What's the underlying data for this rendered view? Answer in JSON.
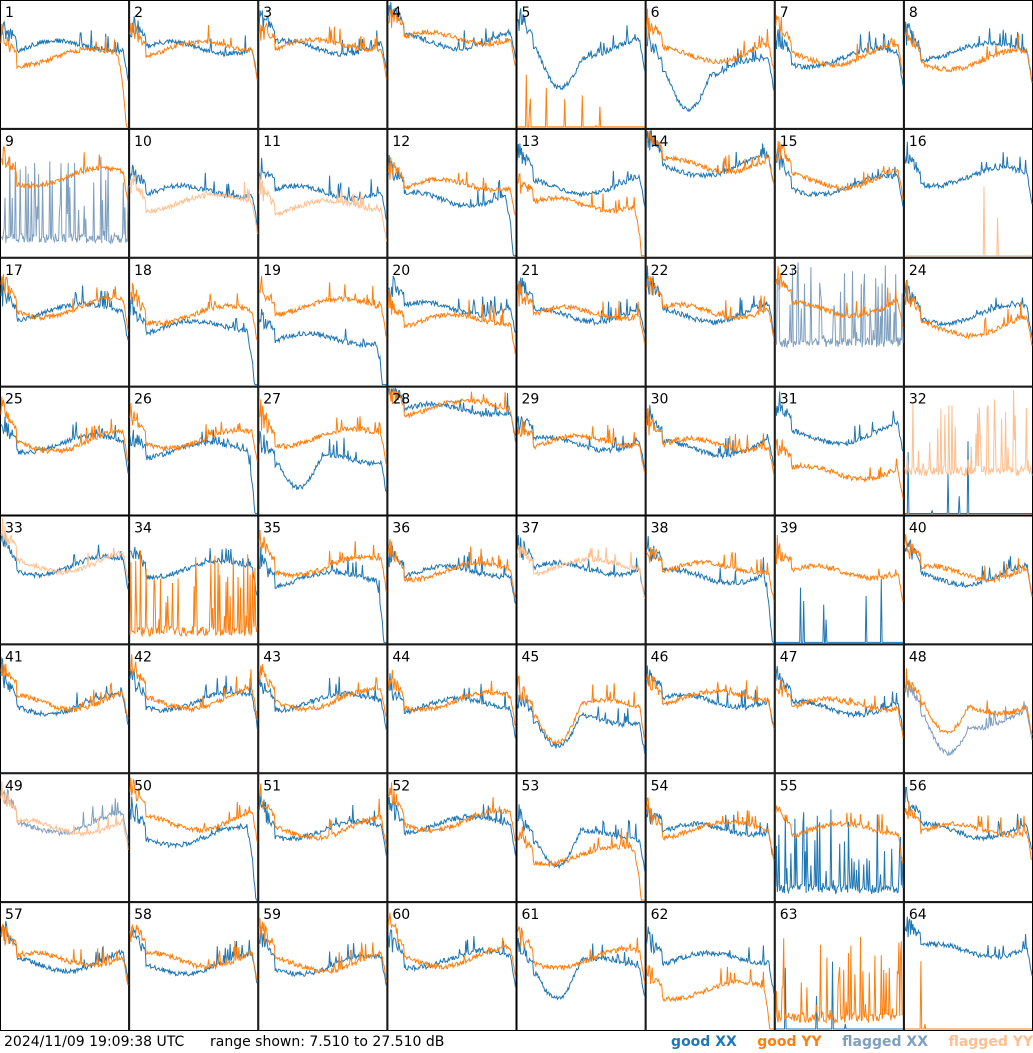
{
  "colors": {
    "good_xx": "#1f77b4",
    "good_yy": "#ff7f0e",
    "flagged_xx": "#7f9fbf",
    "flagged_yy": "#ffbf8f"
  },
  "footer": {
    "timestamp": "2024/11/09 19:09:38 UTC",
    "range_text": "range shown: 7.510 to 27.510 dB"
  },
  "legend": {
    "good_xx": "good XX",
    "good_yy": "good YY",
    "flagged_xx": "flagged XX",
    "flagged_yy": "flagged YY"
  },
  "chart_data": {
    "type": "line",
    "grid": {
      "rows": 8,
      "cols": 8
    },
    "y_range_db": [
      7.51,
      27.51
    ],
    "series_names": [
      "good XX",
      "good YY",
      "flagged XX",
      "flagged YY"
    ],
    "panel_labels": [
      "1",
      "2",
      "3",
      "4",
      "5",
      "6",
      "7",
      "8",
      "9",
      "10",
      "11",
      "12",
      "13",
      "14",
      "15",
      "16",
      "17",
      "18",
      "19",
      "20",
      "21",
      "22",
      "23",
      "24",
      "25",
      "26",
      "27",
      "28",
      "29",
      "30",
      "31",
      "32",
      "33",
      "34",
      "35",
      "36",
      "37",
      "38",
      "39",
      "40",
      "41",
      "42",
      "43",
      "44",
      "45",
      "46",
      "47",
      "48",
      "49",
      "50",
      "51",
      "52",
      "53",
      "54",
      "55",
      "56",
      "57",
      "58",
      "59",
      "60",
      "61",
      "62",
      "63",
      "64"
    ],
    "panels": [
      {
        "id": 1,
        "xx": {
          "flag": false,
          "type": "norm",
          "level": 0.63
        },
        "yy": {
          "flag": false,
          "type": "edge",
          "level": 0.55
        }
      },
      {
        "id": 2,
        "xx": {
          "flag": false,
          "type": "norm",
          "level": 0.62
        },
        "yy": {
          "flag": false,
          "type": "norm",
          "level": 0.62
        }
      },
      {
        "id": 3,
        "xx": {
          "flag": false,
          "type": "norm",
          "level": 0.63
        },
        "yy": {
          "flag": false,
          "type": "norm",
          "level": 0.64
        }
      },
      {
        "id": 4,
        "xx": {
          "flag": false,
          "type": "norm",
          "level": 0.68
        },
        "yy": {
          "flag": false,
          "type": "norm",
          "level": 0.7
        }
      },
      {
        "id": 5,
        "xx": {
          "flag": false,
          "type": "dip",
          "level": 0.6
        },
        "yy": {
          "flag": false,
          "type": "dead",
          "level": 0.0
        }
      },
      {
        "id": 6,
        "xx": {
          "flag": false,
          "type": "dip",
          "level": 0.45
        },
        "yy": {
          "flag": false,
          "type": "norm",
          "level": 0.58
        }
      },
      {
        "id": 7,
        "xx": {
          "flag": false,
          "type": "norm",
          "level": 0.54
        },
        "yy": {
          "flag": false,
          "type": "norm",
          "level": 0.56
        }
      },
      {
        "id": 8,
        "xx": {
          "flag": false,
          "type": "norm",
          "level": 0.6
        },
        "yy": {
          "flag": false,
          "type": "norm",
          "level": 0.52
        }
      },
      {
        "id": 9,
        "xx": {
          "flag": true,
          "type": "spiky",
          "level": 0.1
        },
        "yy": {
          "flag": false,
          "type": "norm",
          "level": 0.62
        }
      },
      {
        "id": 10,
        "xx": {
          "flag": false,
          "type": "norm",
          "level": 0.5
        },
        "yy": {
          "flag": true,
          "type": "norm",
          "level": 0.42
        }
      },
      {
        "id": 11,
        "xx": {
          "flag": false,
          "type": "norm",
          "level": 0.5
        },
        "yy": {
          "flag": true,
          "type": "norm",
          "level": 0.38
        }
      },
      {
        "id": 12,
        "xx": {
          "flag": false,
          "type": "edge",
          "level": 0.45
        },
        "yy": {
          "flag": false,
          "type": "norm",
          "level": 0.55
        }
      },
      {
        "id": 13,
        "xx": {
          "flag": false,
          "type": "norm",
          "level": 0.55
        },
        "yy": {
          "flag": false,
          "type": "edge",
          "level": 0.4
        }
      },
      {
        "id": 14,
        "xx": {
          "flag": false,
          "type": "norm",
          "level": 0.7
        },
        "yy": {
          "flag": false,
          "type": "norm",
          "level": 0.72
        }
      },
      {
        "id": 15,
        "xx": {
          "flag": false,
          "type": "norm",
          "level": 0.55
        },
        "yy": {
          "flag": false,
          "type": "norm",
          "level": 0.6
        }
      },
      {
        "id": 16,
        "xx": {
          "flag": false,
          "type": "norm",
          "level": 0.62
        },
        "yy": {
          "flag": true,
          "type": "dead",
          "level": 0.0
        }
      },
      {
        "id": 17,
        "xx": {
          "flag": false,
          "type": "norm",
          "level": 0.58
        },
        "yy": {
          "flag": false,
          "type": "norm",
          "level": 0.6
        }
      },
      {
        "id": 18,
        "xx": {
          "flag": false,
          "type": "edge",
          "level": 0.45
        },
        "yy": {
          "flag": false,
          "type": "norm",
          "level": 0.55
        }
      },
      {
        "id": 19,
        "xx": {
          "flag": false,
          "type": "edge",
          "level": 0.35
        },
        "yy": {
          "flag": false,
          "type": "norm",
          "level": 0.62
        }
      },
      {
        "id": 20,
        "xx": {
          "flag": false,
          "type": "norm",
          "level": 0.6
        },
        "yy": {
          "flag": false,
          "type": "norm",
          "level": 0.5
        }
      },
      {
        "id": 21,
        "xx": {
          "flag": false,
          "type": "norm",
          "level": 0.55
        },
        "yy": {
          "flag": false,
          "type": "norm",
          "level": 0.56
        }
      },
      {
        "id": 22,
        "xx": {
          "flag": false,
          "type": "norm",
          "level": 0.56
        },
        "yy": {
          "flag": false,
          "type": "norm",
          "level": 0.58
        }
      },
      {
        "id": 23,
        "xx": {
          "flag": true,
          "type": "spiky",
          "level": 0.3
        },
        "yy": {
          "flag": false,
          "type": "norm",
          "level": 0.6
        }
      },
      {
        "id": 24,
        "xx": {
          "flag": false,
          "type": "norm",
          "level": 0.55
        },
        "yy": {
          "flag": false,
          "type": "norm",
          "level": 0.45
        }
      },
      {
        "id": 25,
        "xx": {
          "flag": false,
          "type": "norm",
          "level": 0.55
        },
        "yy": {
          "flag": false,
          "type": "norm",
          "level": 0.56
        }
      },
      {
        "id": 26,
        "xx": {
          "flag": false,
          "type": "edge",
          "level": 0.5
        },
        "yy": {
          "flag": false,
          "type": "norm",
          "level": 0.58
        }
      },
      {
        "id": 27,
        "xx": {
          "flag": false,
          "type": "dip",
          "level": 0.42
        },
        "yy": {
          "flag": false,
          "type": "norm",
          "level": 0.6
        }
      },
      {
        "id": 28,
        "xx": {
          "flag": false,
          "type": "norm",
          "level": 0.82
        },
        "yy": {
          "flag": false,
          "type": "norm",
          "level": 0.84
        }
      },
      {
        "id": 29,
        "xx": {
          "flag": false,
          "type": "norm",
          "level": 0.55
        },
        "yy": {
          "flag": false,
          "type": "norm",
          "level": 0.56
        }
      },
      {
        "id": 30,
        "xx": {
          "flag": false,
          "type": "norm",
          "level": 0.52
        },
        "yy": {
          "flag": false,
          "type": "norm",
          "level": 0.54
        }
      },
      {
        "id": 31,
        "xx": {
          "flag": false,
          "type": "norm",
          "level": 0.62
        },
        "yy": {
          "flag": false,
          "type": "norm",
          "level": 0.32
        }
      },
      {
        "id": 32,
        "xx": {
          "flag": false,
          "type": "dead",
          "level": 0.0
        },
        "yy": {
          "flag": true,
          "type": "spiky",
          "level": 0.3
        }
      },
      {
        "id": 33,
        "xx": {
          "flag": false,
          "type": "norm",
          "level": 0.6
        },
        "yy": {
          "flag": true,
          "type": "norm",
          "level": 0.62
        }
      },
      {
        "id": 34,
        "xx": {
          "flag": false,
          "type": "norm",
          "level": 0.58
        },
        "yy": {
          "flag": false,
          "type": "spiky",
          "level": 0.05
        }
      },
      {
        "id": 35,
        "xx": {
          "flag": false,
          "type": "edge",
          "level": 0.5
        },
        "yy": {
          "flag": false,
          "type": "norm",
          "level": 0.6
        }
      },
      {
        "id": 36,
        "xx": {
          "flag": false,
          "type": "norm",
          "level": 0.55
        },
        "yy": {
          "flag": false,
          "type": "norm",
          "level": 0.56
        }
      },
      {
        "id": 37,
        "xx": {
          "flag": false,
          "type": "norm",
          "level": 0.58
        },
        "yy": {
          "flag": true,
          "type": "norm",
          "level": 0.6
        }
      },
      {
        "id": 38,
        "xx": {
          "flag": false,
          "type": "edge",
          "level": 0.52
        },
        "yy": {
          "flag": false,
          "type": "norm",
          "level": 0.58
        }
      },
      {
        "id": 39,
        "xx": {
          "flag": false,
          "type": "dead",
          "level": 0.0
        },
        "yy": {
          "flag": false,
          "type": "norm",
          "level": 0.55
        }
      },
      {
        "id": 40,
        "xx": {
          "flag": false,
          "type": "norm",
          "level": 0.52
        },
        "yy": {
          "flag": false,
          "type": "norm",
          "level": 0.55
        }
      },
      {
        "id": 41,
        "xx": {
          "flag": false,
          "type": "norm",
          "level": 0.52
        },
        "yy": {
          "flag": false,
          "type": "norm",
          "level": 0.55
        }
      },
      {
        "id": 42,
        "xx": {
          "flag": false,
          "type": "norm",
          "level": 0.55
        },
        "yy": {
          "flag": false,
          "type": "norm",
          "level": 0.56
        }
      },
      {
        "id": 43,
        "xx": {
          "flag": false,
          "type": "norm",
          "level": 0.55
        },
        "yy": {
          "flag": false,
          "type": "norm",
          "level": 0.56
        }
      },
      {
        "id": 44,
        "xx": {
          "flag": false,
          "type": "norm",
          "level": 0.52
        },
        "yy": {
          "flag": false,
          "type": "norm",
          "level": 0.55
        }
      },
      {
        "id": 45,
        "xx": {
          "flag": false,
          "type": "dip",
          "level": 0.4
        },
        "yy": {
          "flag": false,
          "type": "dip",
          "level": 0.5
        }
      },
      {
        "id": 46,
        "xx": {
          "flag": false,
          "type": "norm",
          "level": 0.55
        },
        "yy": {
          "flag": false,
          "type": "norm",
          "level": 0.58
        }
      },
      {
        "id": 47,
        "xx": {
          "flag": false,
          "type": "norm",
          "level": 0.5
        },
        "yy": {
          "flag": false,
          "type": "norm",
          "level": 0.52
        }
      },
      {
        "id": 48,
        "xx": {
          "flag": true,
          "type": "dip",
          "level": 0.4
        },
        "yy": {
          "flag": false,
          "type": "dip",
          "level": 0.5
        }
      },
      {
        "id": 49,
        "xx": {
          "flag": true,
          "type": "norm",
          "level": 0.6
        },
        "yy": {
          "flag": true,
          "type": "norm",
          "level": 0.58
        }
      },
      {
        "id": 50,
        "xx": {
          "flag": false,
          "type": "edge",
          "level": 0.5
        },
        "yy": {
          "flag": false,
          "type": "norm",
          "level": 0.62
        }
      },
      {
        "id": 51,
        "xx": {
          "flag": false,
          "type": "norm",
          "level": 0.55
        },
        "yy": {
          "flag": false,
          "type": "norm",
          "level": 0.56
        }
      },
      {
        "id": 52,
        "xx": {
          "flag": false,
          "type": "norm",
          "level": 0.6
        },
        "yy": {
          "flag": false,
          "type": "norm",
          "level": 0.62
        }
      },
      {
        "id": 53,
        "xx": {
          "flag": false,
          "type": "dip",
          "level": 0.5
        },
        "yy": {
          "flag": false,
          "type": "edge",
          "level": 0.35
        }
      },
      {
        "id": 54,
        "xx": {
          "flag": false,
          "type": "norm",
          "level": 0.55
        },
        "yy": {
          "flag": false,
          "type": "norm",
          "level": 0.56
        }
      },
      {
        "id": 55,
        "xx": {
          "flag": false,
          "type": "spiky",
          "level": 0.05
        },
        "yy": {
          "flag": false,
          "type": "norm",
          "level": 0.55
        }
      },
      {
        "id": 56,
        "xx": {
          "flag": false,
          "type": "norm",
          "level": 0.55
        },
        "yy": {
          "flag": false,
          "type": "norm",
          "level": 0.55
        }
      },
      {
        "id": 57,
        "xx": {
          "flag": false,
          "type": "norm",
          "level": 0.52
        },
        "yy": {
          "flag": false,
          "type": "norm",
          "level": 0.55
        }
      },
      {
        "id": 58,
        "xx": {
          "flag": false,
          "type": "norm",
          "level": 0.5
        },
        "yy": {
          "flag": false,
          "type": "norm",
          "level": 0.55
        }
      },
      {
        "id": 59,
        "xx": {
          "flag": false,
          "type": "norm",
          "level": 0.5
        },
        "yy": {
          "flag": false,
          "type": "norm",
          "level": 0.52
        }
      },
      {
        "id": 60,
        "xx": {
          "flag": false,
          "type": "norm",
          "level": 0.55
        },
        "yy": {
          "flag": false,
          "type": "norm",
          "level": 0.56
        }
      },
      {
        "id": 61,
        "xx": {
          "flag": false,
          "type": "dip",
          "level": 0.5
        },
        "yy": {
          "flag": false,
          "type": "norm",
          "level": 0.55
        }
      },
      {
        "id": 62,
        "xx": {
          "flag": false,
          "type": "norm",
          "level": 0.55
        },
        "yy": {
          "flag": false,
          "type": "edge",
          "level": 0.3
        }
      },
      {
        "id": 63,
        "xx": {
          "flag": false,
          "type": "dead",
          "level": 0.0
        },
        "yy": {
          "flag": false,
          "type": "spiky",
          "level": 0.05
        }
      },
      {
        "id": 64,
        "xx": {
          "flag": false,
          "type": "norm",
          "level": 0.62
        },
        "yy": {
          "flag": false,
          "type": "dead",
          "level": 0.0
        }
      }
    ]
  }
}
